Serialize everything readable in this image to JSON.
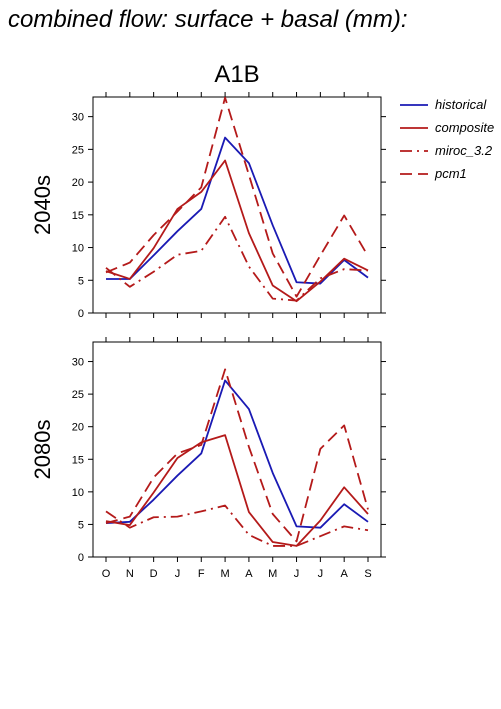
{
  "title": "combined flow: surface + basal (mm):",
  "scenario": "A1B",
  "colors": {
    "historical": "#1a1ab4",
    "projection": "#b41a1a",
    "axis": "#000000"
  },
  "chart_data": {
    "type": "line",
    "categories": [
      "O",
      "N",
      "D",
      "J",
      "F",
      "M",
      "A",
      "M",
      "J",
      "J",
      "A",
      "S"
    ],
    "ylim": [
      0,
      33
    ],
    "yticks": [
      0,
      5,
      10,
      15,
      20,
      25,
      30
    ],
    "grid": false,
    "legend_placement": "right",
    "legend": [
      {
        "name": "historical",
        "color": "#1a1ab4",
        "dash": "solid"
      },
      {
        "name": "composite",
        "color": "#b41a1a",
        "dash": "solid"
      },
      {
        "name": "miroc_3.2",
        "color": "#b41a1a",
        "dash": "dashdot"
      },
      {
        "name": "pcm1",
        "color": "#b41a1a",
        "dash": "dash"
      }
    ],
    "panels": [
      {
        "label": "2040s",
        "series": [
          {
            "name": "historical",
            "values": [
              5.2,
              5.2,
              8.8,
              12.5,
              15.9,
              26.8,
              22.9,
              13.4,
              4.7,
              4.5,
              8.1,
              5.4
            ]
          },
          {
            "name": "composite",
            "values": [
              6.4,
              5.2,
              9.9,
              15.9,
              18.5,
              23.3,
              12.2,
              4.2,
              1.8,
              4.8,
              8.3,
              6.5
            ]
          },
          {
            "name": "miroc_3.2",
            "values": [
              6.9,
              4.0,
              6.3,
              8.9,
              9.5,
              14.7,
              7.1,
              2.2,
              1.9,
              5.3,
              6.7,
              6.5
            ]
          },
          {
            "name": "pcm1",
            "values": [
              6.2,
              7.7,
              11.9,
              15.5,
              19.2,
              32.9,
              21.1,
              9.1,
              2.5,
              8.8,
              14.9,
              8.7
            ]
          }
        ]
      },
      {
        "label": "2080s",
        "series": [
          {
            "name": "historical",
            "values": [
              5.2,
              5.4,
              8.8,
              12.5,
              15.9,
              27.1,
              22.7,
              12.9,
              4.7,
              4.5,
              8.1,
              5.4
            ]
          },
          {
            "name": "composite",
            "values": [
              5.5,
              4.9,
              9.9,
              15.2,
              17.6,
              18.7,
              6.9,
              2.3,
              1.7,
              5.6,
              10.7,
              6.6
            ]
          },
          {
            "name": "miroc_3.2",
            "values": [
              7.0,
              4.5,
              6.1,
              6.2,
              7.0,
              7.9,
              3.4,
              1.7,
              1.7,
              3.2,
              4.7,
              4.1
            ]
          },
          {
            "name": "pcm1",
            "values": [
              5.2,
              6.2,
              12.2,
              15.9,
              17.2,
              28.8,
              16.9,
              6.6,
              2.4,
              16.6,
              20.2,
              7.3
            ]
          }
        ]
      }
    ]
  }
}
